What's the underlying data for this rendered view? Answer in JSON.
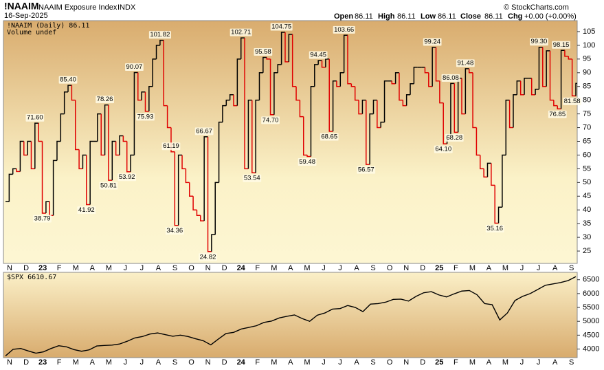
{
  "header": {
    "symbol": "!NAAIM",
    "name": "NAAIM Exposure Index",
    "exchange": "INDX",
    "date": "16-Sep-2025",
    "open_label": "Open",
    "open": "86.11",
    "high_label": "High",
    "high": "86.11",
    "low_label": "Low",
    "low": "86.11",
    "close_label": "Close",
    "close": "86.11",
    "chg_label": "Chg",
    "chg": "+0.00 (+0.00%)",
    "source": "© StockCharts.com"
  },
  "x_labels": [
    "N",
    "D",
    "23",
    "F",
    "M",
    "A",
    "M",
    "J",
    "J",
    "A",
    "S",
    "O",
    "N",
    "D",
    "24",
    "F",
    "M",
    "A",
    "M",
    "J",
    "J",
    "A",
    "S",
    "O",
    "N",
    "D",
    "25",
    "F",
    "M",
    "A",
    "M",
    "J",
    "J",
    "A",
    "S"
  ],
  "chart_data": [
    {
      "type": "line",
      "step": true,
      "legend": "!NAAIM (Daily) 86.11",
      "sublegend": "Volume undef",
      "up_color": "#000000",
      "down_color": "#e00000",
      "ylim": [
        20.5,
        109
      ],
      "yticks": [
        25,
        30,
        35,
        40,
        45,
        50,
        55,
        60,
        65,
        70,
        75,
        80,
        85,
        90,
        95,
        100,
        105
      ],
      "values": [
        43,
        53,
        55,
        54,
        65,
        60,
        65,
        55,
        71.6,
        65,
        38.79,
        43,
        38,
        58,
        65,
        75,
        83,
        85.4,
        80,
        62,
        55,
        60,
        41.92,
        65,
        65,
        75,
        60,
        78.26,
        50.81,
        65,
        60,
        67,
        65,
        53.92,
        60,
        90.07,
        80,
        83,
        75.93,
        85,
        95,
        100,
        101.82,
        78,
        70,
        61.19,
        34.36,
        60,
        55,
        50,
        45,
        40,
        38,
        36,
        66.67,
        24.82,
        31,
        50,
        72,
        78,
        80,
        82,
        78,
        95,
        102.71,
        55,
        80,
        53.54,
        80,
        90,
        95.58,
        95,
        74.7,
        90,
        93,
        104.75,
        94,
        104,
        85,
        80,
        74,
        60,
        59.48,
        85,
        93,
        94.45,
        92,
        95,
        68.65,
        87,
        85,
        90,
        103.66,
        86,
        85,
        80,
        75,
        80,
        56.57,
        75,
        80,
        70,
        72,
        87,
        87,
        86,
        90,
        80,
        78,
        82,
        86,
        92,
        92,
        92,
        90,
        85,
        99.24,
        87,
        79,
        64.1,
        67,
        86.08,
        68.28,
        88,
        75,
        91.48,
        90,
        70,
        60,
        55,
        52,
        57,
        49,
        35.16,
        41,
        60,
        80,
        70,
        82,
        87,
        82,
        88,
        88,
        82,
        84,
        99.3,
        85,
        98,
        80,
        78,
        76.85,
        98.15,
        96,
        95,
        81.58,
        86.11
      ],
      "value_labels": [
        null,
        null,
        null,
        null,
        null,
        null,
        null,
        null,
        "71.60",
        null,
        "38.79",
        null,
        null,
        null,
        null,
        null,
        null,
        "85.40",
        null,
        null,
        null,
        null,
        "41.92",
        null,
        null,
        null,
        null,
        "78.26",
        "50.81",
        null,
        null,
        null,
        null,
        "53.92",
        null,
        "90.07",
        null,
        null,
        "75.93",
        null,
        null,
        null,
        "101.82",
        null,
        null,
        "61.19",
        "34.36",
        null,
        null,
        null,
        null,
        null,
        null,
        null,
        "66.67",
        "24.82",
        null,
        null,
        null,
        null,
        null,
        null,
        null,
        null,
        "102.71",
        null,
        null,
        "53.54",
        null,
        null,
        "95.58",
        null,
        "74.70",
        null,
        null,
        "104.75",
        null,
        null,
        null,
        null,
        null,
        null,
        "59.48",
        null,
        null,
        "94.45",
        null,
        null,
        "68.65",
        null,
        null,
        null,
        "103.66",
        null,
        null,
        null,
        null,
        null,
        "56.57",
        null,
        null,
        null,
        null,
        null,
        null,
        null,
        null,
        null,
        null,
        null,
        null,
        null,
        null,
        null,
        null,
        null,
        "99.24",
        null,
        null,
        "64.10",
        null,
        "86.08",
        "68.28",
        null,
        null,
        "91.48",
        null,
        null,
        null,
        null,
        null,
        null,
        null,
        "35.16",
        null,
        null,
        null,
        null,
        null,
        null,
        null,
        null,
        null,
        null,
        null,
        "99.30",
        null,
        null,
        null,
        null,
        "76.85",
        "98.15",
        null,
        null,
        "81.58",
        null
      ]
    },
    {
      "type": "line",
      "legend": "$SPX 6610.67",
      "color": "#000000",
      "ylim": [
        3690,
        6766
      ],
      "yticks": [
        4000,
        4500,
        5000,
        5500,
        6000,
        6500
      ],
      "values": [
        3750,
        3990,
        4020,
        3930,
        3850,
        3900,
        4020,
        4120,
        4080,
        3980,
        3920,
        3970,
        4110,
        4130,
        4140,
        4180,
        4280,
        4400,
        4450,
        4540,
        4580,
        4520,
        4460,
        4500,
        4450,
        4370,
        4300,
        4150,
        4360,
        4560,
        4600,
        4720,
        4780,
        4840,
        4960,
        5010,
        5120,
        5180,
        5230,
        5100,
        5000,
        5220,
        5300,
        5440,
        5460,
        5570,
        5500,
        5350,
        5620,
        5640,
        5690,
        5790,
        5800,
        5730,
        5900,
        6030,
        6070,
        5950,
        5880,
        5990,
        6090,
        6110,
        5960,
        5640,
        5600,
        5050,
        5300,
        5750,
        5900,
        6000,
        6150,
        6300,
        6350,
        6400,
        6470,
        6610.67
      ]
    }
  ]
}
